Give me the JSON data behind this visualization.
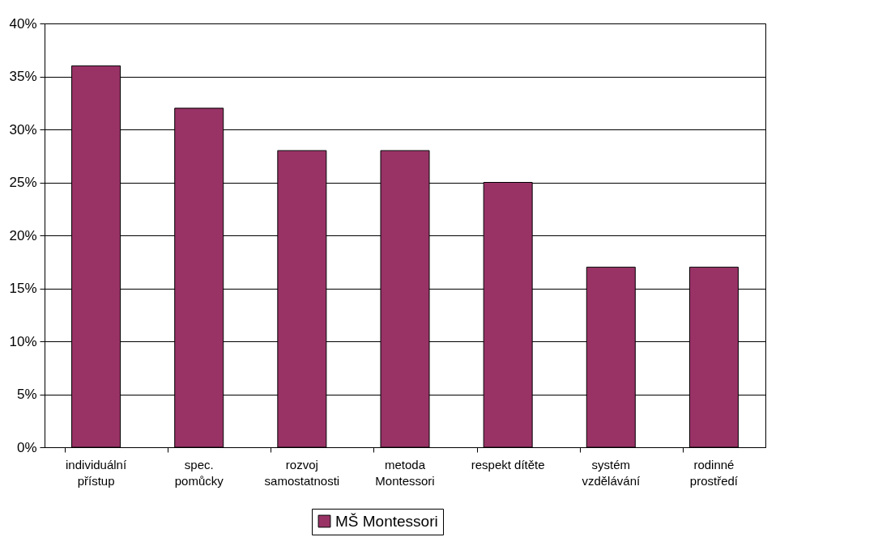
{
  "chart_data": {
    "type": "bar",
    "categories": [
      "individuální\npřístup",
      "spec.\npomůcky",
      "rozvoj\nsamostatnosti",
      "metoda\nMontessori",
      "respekt dítěte",
      "systém\nvzdělávání",
      "rodinné\nprostředí"
    ],
    "series": [
      {
        "name": "MŠ Montessori",
        "color": "#993366",
        "values": [
          0.36,
          0.32,
          0.28,
          0.28,
          0.25,
          0.17,
          0.17
        ]
      }
    ],
    "ylim": [
      0,
      0.4
    ],
    "yticks": [
      {
        "value": 0,
        "label": "0%"
      },
      {
        "value": 0.05,
        "label": "5%"
      },
      {
        "value": 0.1,
        "label": "10%"
      },
      {
        "value": 0.15,
        "label": "15%"
      },
      {
        "value": 0.2,
        "label": "20%"
      },
      {
        "value": 0.25,
        "label": "25%"
      },
      {
        "value": 0.3,
        "label": "30%"
      },
      {
        "value": 0.35,
        "label": "35%"
      },
      {
        "value": 0.4,
        "label": "40%"
      }
    ],
    "grid": "y",
    "legend": "bottom"
  }
}
